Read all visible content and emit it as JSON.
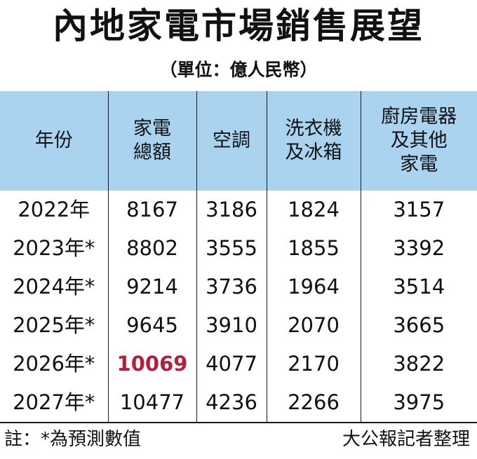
{
  "title": "內地家電市場銷售展望",
  "unit": "（單位：億人民幣）",
  "headers": [
    [
      "年份"
    ],
    [
      "家電",
      "總額"
    ],
    [
      "空調"
    ],
    [
      "洗衣機",
      "及冰箱"
    ],
    [
      "廚房電器",
      "及其他",
      "家電"
    ]
  ],
  "rows": [
    [
      "2022年",
      "8167",
      "3186",
      "1824",
      "3157"
    ],
    [
      "2023年*",
      "8802",
      "3555",
      "1855",
      "3392"
    ],
    [
      "2024年*",
      "9214",
      "3736",
      "1964",
      "3514"
    ],
    [
      "2025年*",
      "9645",
      "3910",
      "2070",
      "3665"
    ],
    [
      "2026年*",
      "10069",
      "4077",
      "2170",
      "3822"
    ],
    [
      "2027年*",
      "10477",
      "4236",
      "2266",
      "3975"
    ]
  ],
  "highlight_color": "#b41f3c",
  "header_bg": "#a9d3ef",
  "note": "註：*為預測數值",
  "credit": "大公報記者整理"
}
